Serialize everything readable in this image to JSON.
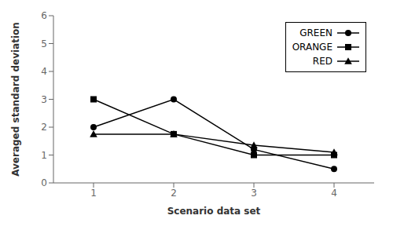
{
  "chart_data": {
    "type": "line",
    "x_label": "Scenario data set",
    "y_label": "Averaged standard deviation",
    "x": [
      1,
      2,
      3,
      4
    ],
    "series": [
      {
        "name": "GREEN",
        "color": "#000000",
        "marker": "circle",
        "values": [
          2.0,
          3.0,
          1.2,
          0.5
        ]
      },
      {
        "name": "ORANGE",
        "color": "#000000",
        "marker": "square",
        "values": [
          3.0,
          1.75,
          1.0,
          1.0
        ]
      },
      {
        "name": "RED",
        "color": "#000000",
        "marker": "triangle",
        "values": [
          1.75,
          1.75,
          1.35,
          1.1
        ]
      }
    ],
    "xlim": [
      0.5,
      4.5
    ],
    "xticks": [
      1,
      2,
      3,
      4
    ],
    "ylim": [
      0,
      6
    ],
    "yticks": [
      0,
      1,
      2,
      3,
      4,
      5,
      6
    ],
    "grid": false,
    "legend": "upper right"
  }
}
